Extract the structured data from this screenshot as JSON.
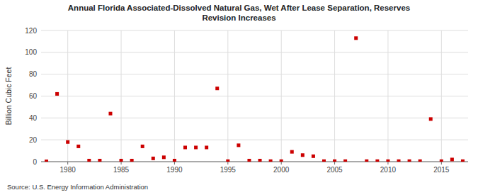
{
  "chart_data": {
    "type": "scatter",
    "title": "Annual Florida Associated-Dissolved Natural Gas, Wet After Lease Separation, Reserves\nRevision Increases",
    "ylabel": "Billion Cubic Feet",
    "source": "Source: U.S. Energy Information Administration",
    "color": "#cc0000",
    "marker": "square",
    "grid": true,
    "xlim": [
      1977.5,
      2017.5
    ],
    "ylim": [
      0,
      120
    ],
    "xticks": [
      1980,
      1985,
      1990,
      1995,
      2000,
      2005,
      2010,
      2015
    ],
    "yticks": [
      0,
      20,
      40,
      60,
      80,
      100,
      120
    ],
    "x": [
      1978,
      1979,
      1980,
      1981,
      1982,
      1983,
      1984,
      1985,
      1986,
      1987,
      1988,
      1989,
      1990,
      1991,
      1992,
      1993,
      1994,
      1995,
      1996,
      1997,
      1998,
      1999,
      2000,
      2001,
      2002,
      2003,
      2004,
      2005,
      2006,
      2007,
      2008,
      2009,
      2010,
      2011,
      2012,
      2013,
      2014,
      2015,
      2016,
      2017
    ],
    "values": [
      0.3,
      62,
      18,
      14,
      1,
      1,
      44,
      1,
      1,
      14,
      3,
      4,
      1,
      13,
      13,
      13,
      67,
      0.5,
      15,
      1,
      1,
      0.5,
      0.5,
      9,
      6,
      5,
      0.5,
      0.5,
      0.5,
      113,
      0.5,
      0.5,
      0.5,
      0.5,
      0.5,
      0.5,
      39,
      0.5,
      2,
      0.5
    ]
  }
}
